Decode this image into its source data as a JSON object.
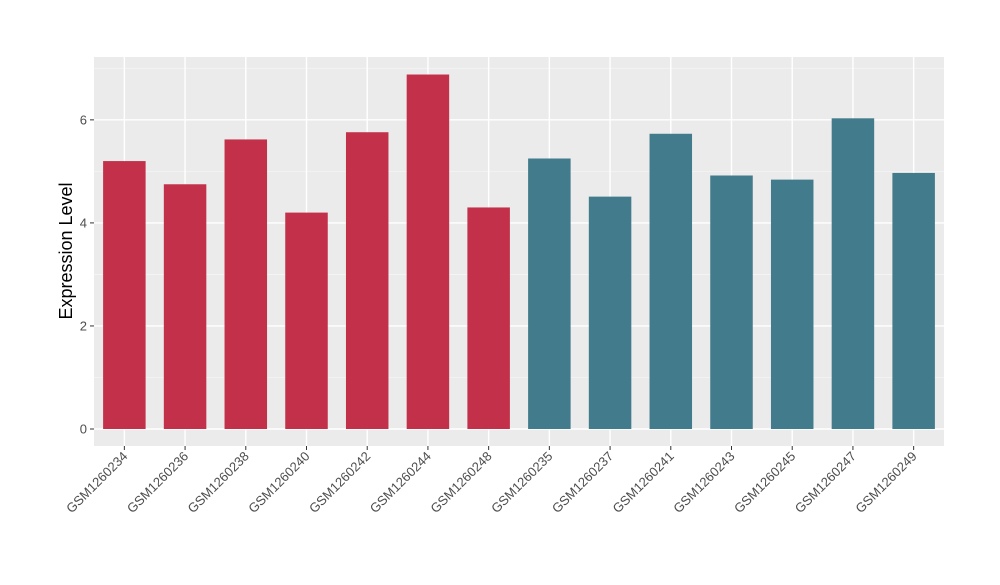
{
  "chart_data": {
    "type": "bar",
    "ylabel": "Expression Level",
    "xlabel": "",
    "ylim": [
      -0.33,
      7.22
    ],
    "yticks": [
      0,
      2,
      4,
      6
    ],
    "grid": true,
    "categories": [
      "GSM1260234",
      "GSM1260236",
      "GSM1260238",
      "GSM1260240",
      "GSM1260242",
      "GSM1260244",
      "GSM1260248",
      "GSM1260235",
      "GSM1260237",
      "GSM1260241",
      "GSM1260243",
      "GSM1260245",
      "GSM1260247",
      "GSM1260249"
    ],
    "values": [
      5.2,
      4.75,
      5.62,
      4.2,
      5.76,
      6.88,
      4.3,
      5.25,
      4.51,
      5.73,
      4.92,
      4.84,
      6.03,
      4.97
    ],
    "bar_colors": [
      "#c3304a",
      "#c3304a",
      "#c3304a",
      "#c3304a",
      "#c3304a",
      "#c3304a",
      "#c3304a",
      "#427b8b",
      "#427b8b",
      "#427b8b",
      "#427b8b",
      "#427b8b",
      "#427b8b",
      "#427b8b"
    ]
  }
}
